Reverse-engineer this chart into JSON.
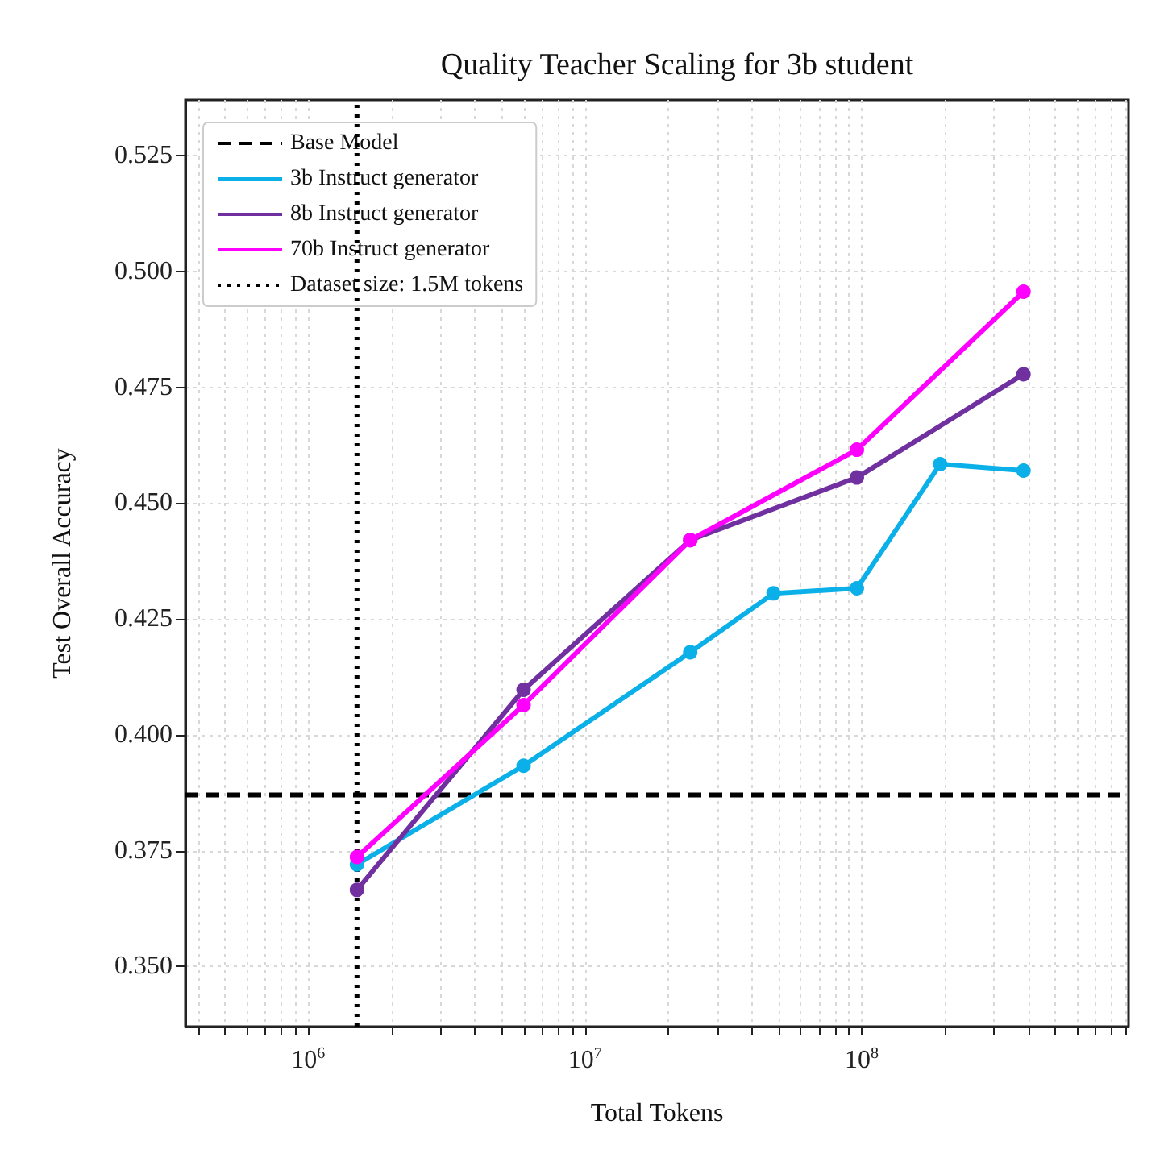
{
  "chart_data": {
    "type": "line",
    "title": "Quality Teacher Scaling for 3b student",
    "xlabel": "Total Tokens",
    "ylabel": "Test Overall Accuracy",
    "log": "x",
    "grid": true,
    "legend": "top left",
    "marker": "circle",
    "line_style": "solid",
    "xlim": [
      360000,
      920000000
    ],
    "xticks": [
      {
        "value": 400000,
        "label": null
      },
      {
        "value": 500000,
        "label": null
      },
      {
        "value": 600000,
        "label": null
      },
      {
        "value": 700000,
        "label": null
      },
      {
        "value": 800000,
        "label": null
      },
      {
        "value": 900000,
        "label": null
      },
      {
        "value": 1000000,
        "label": "10$^{6}$"
      },
      {
        "value": 2000000,
        "label": null
      },
      {
        "value": 3000000,
        "label": null
      },
      {
        "value": 4000000,
        "label": null
      },
      {
        "value": 5000000,
        "label": null
      },
      {
        "value": 6000000,
        "label": null
      },
      {
        "value": 7000000,
        "label": null
      },
      {
        "value": 8000000,
        "label": null
      },
      {
        "value": 9000000,
        "label": null
      },
      {
        "value": 10000000,
        "label": "10$^{7}$"
      },
      {
        "value": 20000000,
        "label": null
      },
      {
        "value": 30000000,
        "label": null
      },
      {
        "value": 40000000,
        "label": null
      },
      {
        "value": 50000000,
        "label": null
      },
      {
        "value": 60000000,
        "label": null
      },
      {
        "value": 70000000,
        "label": null
      },
      {
        "value": 80000000,
        "label": null
      },
      {
        "value": 90000000,
        "label": null
      },
      {
        "value": 100000000,
        "label": "10$^{8}$"
      },
      {
        "value": 200000000,
        "label": null
      },
      {
        "value": 300000000,
        "label": null
      },
      {
        "value": 400000000,
        "label": null
      },
      {
        "value": 500000000,
        "label": null
      },
      {
        "value": 600000000,
        "label": null
      },
      {
        "value": 700000000,
        "label": null
      },
      {
        "value": 800000000,
        "label": null
      },
      {
        "value": 900000000,
        "label": null
      }
    ],
    "ylim": [
      0.337,
      0.537
    ],
    "yticks": [
      {
        "value": 0.35,
        "label": "0.350"
      },
      {
        "value": 0.375,
        "label": "0.375"
      },
      {
        "value": 0.4,
        "label": "0.400"
      },
      {
        "value": 0.425,
        "label": "0.425"
      },
      {
        "value": 0.45,
        "label": "0.450"
      },
      {
        "value": 0.475,
        "label": "0.475"
      },
      {
        "value": 0.5,
        "label": "0.500"
      },
      {
        "value": 0.525,
        "label": "0.525"
      }
    ],
    "series": [
      {
        "name": "3b Instruct generator",
        "color": "#0cb0e8",
        "x": [
          1500000,
          6000000,
          24000000,
          48000000,
          96000000,
          192000000,
          384000000
        ],
        "values": [
          0.372,
          0.3933,
          0.4178,
          0.4305,
          0.4316,
          0.4584,
          0.457
        ]
      },
      {
        "name": "8b Instruct generator",
        "color": "#7030a0",
        "x": [
          1500000,
          6000000,
          24000000,
          96000000,
          384000000
        ],
        "values": [
          0.3665,
          0.4097,
          0.442,
          0.4555,
          0.4778
        ]
      },
      {
        "name": "70b Instruct generator",
        "color": "#ff00ff",
        "x": [
          1500000,
          6000000,
          24000000,
          96000000,
          384000000
        ],
        "values": [
          0.3736,
          0.4064,
          0.442,
          0.4615,
          0.4956
        ]
      }
    ],
    "ref_lines": [
      {
        "axis": "y",
        "value": 0.387,
        "label": "Base Model",
        "color": "#000000",
        "line_style": "dashed"
      },
      {
        "axis": "x",
        "value": 1500000,
        "label": "Dataset size: 1.5M tokens",
        "color": "#000000",
        "line_style": "dotted"
      }
    ]
  }
}
